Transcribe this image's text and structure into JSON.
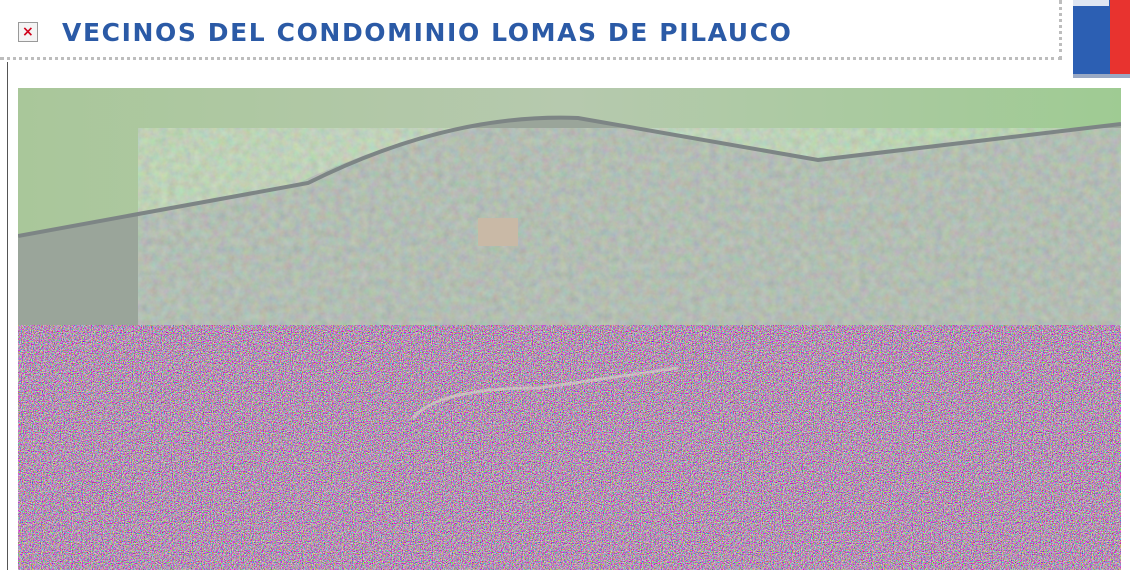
{
  "header": {
    "title": "VECINOS DEL CONDOMINIO LOMAS DE PILAUCO"
  }
}
